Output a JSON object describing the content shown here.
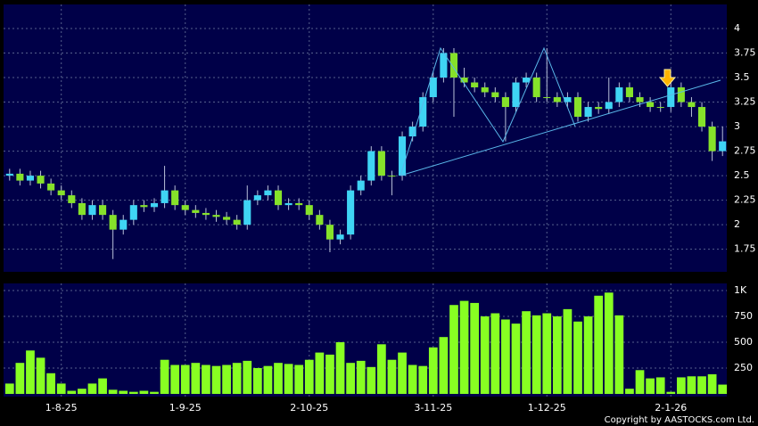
{
  "chart_data": {
    "type": "candlestick",
    "categories": [
      null,
      null,
      null,
      null,
      null,
      "1-8-25",
      null,
      null,
      null,
      null,
      null,
      null,
      null,
      null,
      null,
      null,
      null,
      "1-9-25",
      null,
      null,
      null,
      null,
      null,
      null,
      null,
      null,
      null,
      null,
      null,
      "2-10-25",
      null,
      null,
      null,
      null,
      null,
      null,
      null,
      null,
      null,
      null,
      null,
      "3-11-25",
      null,
      null,
      null,
      null,
      null,
      null,
      null,
      null,
      null,
      null,
      "1-12-25",
      null,
      null,
      null,
      null,
      null,
      null,
      null,
      null,
      null,
      null,
      null,
      "2-1-26",
      null,
      null,
      null,
      null,
      null
    ],
    "open": [
      2.5,
      2.52,
      2.45,
      2.5,
      2.42,
      2.35,
      2.3,
      2.22,
      2.1,
      2.2,
      2.1,
      1.95,
      2.05,
      2.2,
      2.18,
      2.22,
      2.35,
      2.2,
      2.15,
      2.12,
      2.1,
      2.08,
      2.05,
      2.0,
      2.25,
      2.3,
      2.35,
      2.2,
      2.22,
      2.2,
      2.1,
      2.0,
      1.85,
      1.9,
      2.35,
      2.45,
      2.75,
      2.5,
      2.5,
      2.9,
      3.0,
      3.3,
      3.5,
      3.75,
      3.5,
      3.45,
      3.4,
      3.35,
      3.3,
      3.2,
      3.45,
      3.5,
      3.3,
      3.3,
      3.25,
      3.3,
      3.1,
      3.2,
      3.18,
      3.25,
      3.4,
      3.3,
      3.25,
      3.2,
      3.2,
      3.4,
      3.25,
      3.2,
      3.0,
      2.75
    ],
    "high": [
      2.57,
      2.57,
      2.55,
      2.55,
      2.47,
      2.4,
      2.35,
      2.27,
      2.25,
      2.25,
      2.15,
      2.1,
      2.25,
      2.25,
      2.27,
      2.6,
      2.4,
      2.25,
      2.2,
      2.17,
      2.15,
      2.13,
      2.1,
      2.4,
      2.35,
      2.4,
      2.4,
      2.27,
      2.27,
      2.25,
      2.15,
      2.05,
      1.95,
      2.4,
      2.5,
      2.8,
      2.8,
      2.55,
      2.95,
      3.05,
      3.35,
      3.55,
      3.8,
      3.8,
      3.6,
      3.5,
      3.45,
      3.4,
      3.35,
      3.5,
      3.55,
      3.55,
      3.8,
      3.35,
      3.35,
      3.35,
      3.25,
      3.25,
      3.5,
      3.45,
      3.45,
      3.35,
      3.3,
      3.25,
      3.45,
      3.45,
      3.3,
      3.25,
      3.05,
      3.0
    ],
    "low": [
      2.45,
      2.4,
      2.4,
      2.37,
      2.3,
      2.25,
      2.17,
      2.05,
      2.05,
      2.05,
      1.65,
      1.9,
      2.0,
      2.13,
      2.13,
      2.17,
      2.15,
      2.1,
      2.07,
      2.05,
      2.03,
      2.0,
      1.95,
      1.95,
      2.2,
      2.25,
      2.15,
      2.15,
      2.15,
      2.05,
      1.95,
      1.72,
      1.8,
      1.85,
      2.3,
      2.4,
      2.45,
      2.3,
      2.45,
      2.85,
      2.95,
      3.25,
      3.45,
      3.1,
      3.4,
      3.35,
      3.3,
      3.25,
      2.85,
      3.15,
      3.4,
      3.25,
      3.25,
      3.2,
      3.2,
      3.05,
      3.05,
      3.13,
      3.13,
      3.2,
      3.25,
      3.2,
      3.15,
      3.15,
      3.15,
      3.2,
      3.1,
      2.95,
      2.65,
      2.7
    ],
    "close": [
      2.52,
      2.45,
      2.5,
      2.42,
      2.35,
      2.3,
      2.22,
      2.1,
      2.2,
      2.1,
      1.95,
      2.05,
      2.2,
      2.18,
      2.22,
      2.35,
      2.2,
      2.15,
      2.12,
      2.1,
      2.08,
      2.05,
      2.0,
      2.25,
      2.3,
      2.35,
      2.2,
      2.22,
      2.2,
      2.1,
      2.0,
      1.85,
      1.9,
      2.35,
      2.45,
      2.75,
      2.5,
      2.5,
      2.9,
      3.0,
      3.3,
      3.5,
      3.75,
      3.5,
      3.45,
      3.4,
      3.35,
      3.3,
      3.2,
      3.45,
      3.5,
      3.3,
      3.3,
      3.25,
      3.3,
      3.1,
      3.2,
      3.18,
      3.25,
      3.4,
      3.3,
      3.25,
      3.2,
      3.2,
      3.4,
      3.25,
      3.2,
      3.0,
      2.75,
      2.85
    ],
    "volume": [
      100,
      300,
      420,
      350,
      200,
      100,
      30,
      50,
      100,
      150,
      40,
      30,
      20,
      30,
      20,
      330,
      280,
      280,
      300,
      280,
      270,
      280,
      300,
      320,
      250,
      270,
      300,
      290,
      280,
      330,
      400,
      380,
      500,
      300,
      320,
      260,
      480,
      330,
      400,
      280,
      270,
      450,
      550,
      860,
      900,
      880,
      750,
      780,
      720,
      680,
      800,
      760,
      780,
      750,
      820,
      700,
      750,
      950,
      980,
      760,
      50,
      230,
      150,
      160,
      20,
      160,
      170,
      170,
      190,
      90
    ],
    "up_color": "#3fd4f4",
    "down_color": "#86e22a",
    "volume_color": "#88ff22",
    "ylim": [
      1.52,
      4.245
    ],
    "yticks": [
      1.75,
      2,
      2.25,
      2.5,
      2.75,
      3,
      3.25,
      3.5,
      3.75,
      4
    ],
    "volume_ylim": [
      -26,
      1069
    ],
    "volume_yticks": [
      250,
      500,
      750,
      {
        "value": 1000,
        "label": "1K"
      }
    ],
    "grid": true,
    "copyright": "Copyright by AASTOCKS.com Ltd."
  }
}
